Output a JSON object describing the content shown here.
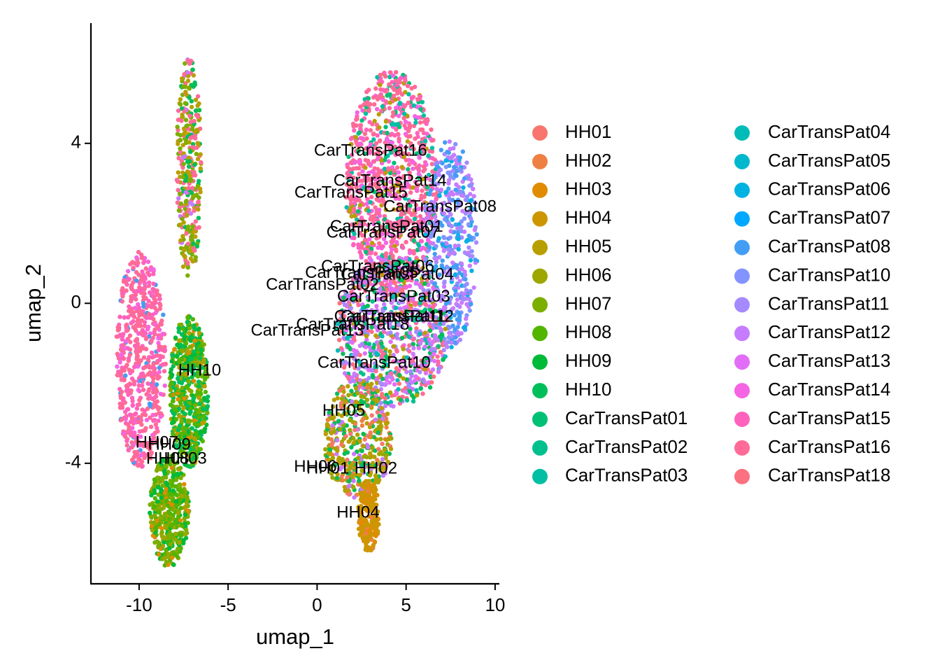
{
  "chart_data": {
    "type": "scatter",
    "title": "",
    "xlabel": "umap_1",
    "ylabel": "umap_2",
    "xlim": [
      -12.7,
      10.2
    ],
    "ylim": [
      -7.0,
      6.9
    ],
    "xticks": [
      {
        "value": -10,
        "label": "-10"
      },
      {
        "value": -5,
        "label": "-5"
      },
      {
        "value": 0,
        "label": "0"
      },
      {
        "value": 5,
        "label": "5"
      },
      {
        "value": 10,
        "label": "10"
      }
    ],
    "yticks": [
      {
        "value": 4,
        "label": "4"
      },
      {
        "value": 0,
        "label": "0"
      },
      {
        "value": -4,
        "label": "-4"
      }
    ],
    "legend_position": "right",
    "legend": [
      {
        "name": "HH01",
        "color": "#F8766D"
      },
      {
        "name": "HH02",
        "color": "#EE8043"
      },
      {
        "name": "HH03",
        "color": "#E08B00"
      },
      {
        "name": "HH04",
        "color": "#CD9600"
      },
      {
        "name": "HH05",
        "color": "#B79F00"
      },
      {
        "name": "HH06",
        "color": "#9DA700"
      },
      {
        "name": "HH07",
        "color": "#7CAE00"
      },
      {
        "name": "HH08",
        "color": "#52B500"
      },
      {
        "name": "HH09",
        "color": "#00BA38"
      },
      {
        "name": "HH10",
        "color": "#00BE59"
      },
      {
        "name": "CarTransPat01",
        "color": "#00C076"
      },
      {
        "name": "CarTransPat02",
        "color": "#00C08D"
      },
      {
        "name": "CarTransPat03",
        "color": "#00BFA4"
      },
      {
        "name": "CarTransPat04",
        "color": "#00BCB8"
      },
      {
        "name": "CarTransPat05",
        "color": "#00B8CE"
      },
      {
        "name": "CarTransPat06",
        "color": "#00B2E2"
      },
      {
        "name": "CarTransPat07",
        "color": "#00A9FF"
      },
      {
        "name": "CarTransPat08",
        "color": "#449DF5"
      },
      {
        "name": "CarTransPat10",
        "color": "#8494FF"
      },
      {
        "name": "CarTransPat11",
        "color": "#A58AFF"
      },
      {
        "name": "CarTransPat12",
        "color": "#C77CFF"
      },
      {
        "name": "CarTransPat13",
        "color": "#E26EF7"
      },
      {
        "name": "CarTransPat14",
        "color": "#F564E3"
      },
      {
        "name": "CarTransPat15",
        "color": "#FF62BC"
      },
      {
        "name": "CarTransPat16",
        "color": "#FF6A98"
      },
      {
        "name": "CarTransPat18",
        "color": "#FC717F"
      }
    ],
    "cluster_labels": [
      {
        "text": "CarTransPat16",
        "x": 3.0,
        "y": 3.8
      },
      {
        "text": "CarTransPat14",
        "x": 4.1,
        "y": 3.05
      },
      {
        "text": "CarTransPat15",
        "x": 1.9,
        "y": 2.75
      },
      {
        "text": "CarTransPat08",
        "x": 6.9,
        "y": 2.4
      },
      {
        "text": "CarTransPat01",
        "x": 3.9,
        "y": 1.9
      },
      {
        "text": "CarTransPat07",
        "x": 3.7,
        "y": 1.75
      },
      {
        "text": "CarTransPat06",
        "x": 3.4,
        "y": 0.9
      },
      {
        "text": "CarTransPat05",
        "x": 2.5,
        "y": 0.75
      },
      {
        "text": "CarTransPat04",
        "x": 4.5,
        "y": 0.7
      },
      {
        "text": "CarTransPat02",
        "x": 0.3,
        "y": 0.45
      },
      {
        "text": "CarTransPat03",
        "x": 4.3,
        "y": 0.15
      },
      {
        "text": "CarTransPat11",
        "x": 4.1,
        "y": -0.35
      },
      {
        "text": "CarTransPat12",
        "x": 4.5,
        "y": -0.35
      },
      {
        "text": "CarTransPat18",
        "x": 2.0,
        "y": -0.55
      },
      {
        "text": "CarTransPat13",
        "x": -0.55,
        "y": -0.7
      },
      {
        "text": "CarTransPat10",
        "x": 3.2,
        "y": -1.5
      },
      {
        "text": "HH10",
        "x": -6.6,
        "y": -1.7
      },
      {
        "text": "HH05",
        "x": 1.5,
        "y": -2.7
      },
      {
        "text": "HH07",
        "x": -9.0,
        "y": -3.5
      },
      {
        "text": "HH09",
        "x": -8.3,
        "y": -3.55
      },
      {
        "text": "HH08",
        "x": -8.4,
        "y": -3.9
      },
      {
        "text": "HH03",
        "x": -7.4,
        "y": -3.9
      },
      {
        "text": "HH06",
        "x": -0.1,
        "y": -4.1
      },
      {
        "text": "HH01",
        "x": 0.6,
        "y": -4.15
      },
      {
        "text": "HH02",
        "x": 3.3,
        "y": -4.15
      },
      {
        "text": "HH04",
        "x": 2.3,
        "y": -5.25
      }
    ]
  }
}
